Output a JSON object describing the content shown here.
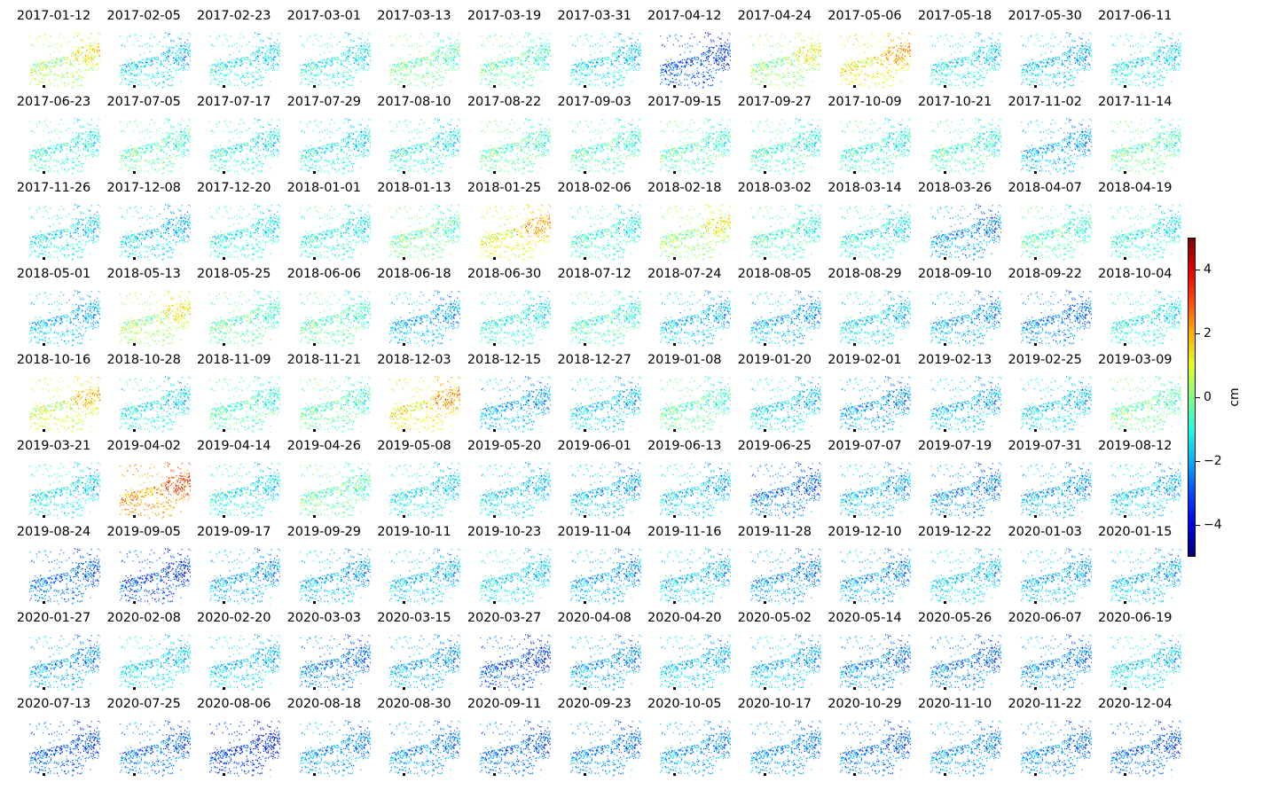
{
  "chart_data": {
    "type": "heatmap",
    "layout": "small-multiples",
    "colormap": "jet",
    "colorbar": {
      "range": [
        -5,
        5
      ],
      "ticks": [
        4,
        2,
        0,
        -2,
        -4
      ],
      "tick_labels": [
        "4",
        "2",
        "0",
        "−2",
        "−4"
      ],
      "unit": "cm"
    },
    "panels": [
      {
        "date": "2017-01-12",
        "mean": 0.4
      },
      {
        "date": "2017-02-05",
        "mean": -1.4
      },
      {
        "date": "2017-02-23",
        "mean": -1.1
      },
      {
        "date": "2017-03-01",
        "mean": -1.0
      },
      {
        "date": "2017-03-13",
        "mean": -0.2
      },
      {
        "date": "2017-03-19",
        "mean": -0.4
      },
      {
        "date": "2017-03-31",
        "mean": -1.3
      },
      {
        "date": "2017-04-12",
        "mean": -2.9
      },
      {
        "date": "2017-04-24",
        "mean": 0.1
      },
      {
        "date": "2017-05-06",
        "mean": 1.2
      },
      {
        "date": "2017-05-18",
        "mean": -1.2
      },
      {
        "date": "2017-05-30",
        "mean": -1.6
      },
      {
        "date": "2017-06-11",
        "mean": -1.2
      },
      {
        "date": "2017-06-23",
        "mean": -0.8
      },
      {
        "date": "2017-07-05",
        "mean": -0.4
      },
      {
        "date": "2017-07-17",
        "mean": -0.9
      },
      {
        "date": "2017-07-29",
        "mean": -1.1
      },
      {
        "date": "2017-08-10",
        "mean": -0.9
      },
      {
        "date": "2017-08-22",
        "mean": -0.4
      },
      {
        "date": "2017-09-03",
        "mean": -0.5
      },
      {
        "date": "2017-09-15",
        "mean": -0.5
      },
      {
        "date": "2017-09-27",
        "mean": -0.7
      },
      {
        "date": "2017-10-09",
        "mean": -0.8
      },
      {
        "date": "2017-10-21",
        "mean": -0.6
      },
      {
        "date": "2017-11-02",
        "mean": -1.8
      },
      {
        "date": "2017-11-14",
        "mean": -0.3
      },
      {
        "date": "2017-11-26",
        "mean": -1.2
      },
      {
        "date": "2017-12-08",
        "mean": -1.5
      },
      {
        "date": "2017-12-20",
        "mean": -1.0
      },
      {
        "date": "2018-01-01",
        "mean": -0.9
      },
      {
        "date": "2018-01-13",
        "mean": -0.2
      },
      {
        "date": "2018-01-25",
        "mean": 1.1
      },
      {
        "date": "2018-02-06",
        "mean": -0.8
      },
      {
        "date": "2018-02-18",
        "mean": 0.2
      },
      {
        "date": "2018-03-02",
        "mean": -0.6
      },
      {
        "date": "2018-03-14",
        "mean": -1.0
      },
      {
        "date": "2018-03-26",
        "mean": -2.1
      },
      {
        "date": "2018-04-07",
        "mean": -0.5
      },
      {
        "date": "2018-04-19",
        "mean": -0.9
      },
      {
        "date": "2018-05-01",
        "mean": -1.7
      },
      {
        "date": "2018-05-13",
        "mean": 0.3
      },
      {
        "date": "2018-05-25",
        "mean": -0.4
      },
      {
        "date": "2018-06-06",
        "mean": -0.4
      },
      {
        "date": "2018-06-18",
        "mean": -1.8
      },
      {
        "date": "2018-06-30",
        "mean": -0.9
      },
      {
        "date": "2018-07-12",
        "mean": -0.6
      },
      {
        "date": "2018-07-24",
        "mean": -1.6
      },
      {
        "date": "2018-08-05",
        "mean": -1.8
      },
      {
        "date": "2018-08-29",
        "mean": -1.4
      },
      {
        "date": "2018-09-10",
        "mean": -1.9
      },
      {
        "date": "2018-09-22",
        "mean": -2.3
      },
      {
        "date": "2018-10-04",
        "mean": -1.0
      },
      {
        "date": "2018-10-16",
        "mean": 0.8
      },
      {
        "date": "2018-10-28",
        "mean": -1.1
      },
      {
        "date": "2018-11-09",
        "mean": -0.6
      },
      {
        "date": "2018-11-21",
        "mean": -0.4
      },
      {
        "date": "2018-12-03",
        "mean": 1.3
      },
      {
        "date": "2018-12-15",
        "mean": -1.8
      },
      {
        "date": "2018-12-27",
        "mean": -1.5
      },
      {
        "date": "2019-01-08",
        "mean": -0.4
      },
      {
        "date": "2019-01-20",
        "mean": -1.4
      },
      {
        "date": "2019-02-01",
        "mean": -2.0
      },
      {
        "date": "2019-02-13",
        "mean": -1.7
      },
      {
        "date": "2019-02-25",
        "mean": -1.4
      },
      {
        "date": "2019-03-09",
        "mean": -0.2
      },
      {
        "date": "2019-03-21",
        "mean": -1.2
      },
      {
        "date": "2019-04-02",
        "mean": 2.2
      },
      {
        "date": "2019-04-14",
        "mean": -1.1
      },
      {
        "date": "2019-04-26",
        "mean": -0.3
      },
      {
        "date": "2019-05-08",
        "mean": -1.2
      },
      {
        "date": "2019-05-20",
        "mean": -1.4
      },
      {
        "date": "2019-06-01",
        "mean": -1.7
      },
      {
        "date": "2019-06-13",
        "mean": -1.5
      },
      {
        "date": "2019-06-25",
        "mean": -2.5
      },
      {
        "date": "2019-07-07",
        "mean": -1.7
      },
      {
        "date": "2019-07-19",
        "mean": -2.2
      },
      {
        "date": "2019-07-31",
        "mean": -1.9
      },
      {
        "date": "2019-08-12",
        "mean": -1.6
      },
      {
        "date": "2019-08-24",
        "mean": -2.5
      },
      {
        "date": "2019-09-05",
        "mean": -3.0
      },
      {
        "date": "2019-09-17",
        "mean": -1.9
      },
      {
        "date": "2019-09-29",
        "mean": -1.8
      },
      {
        "date": "2019-10-11",
        "mean": -1.6
      },
      {
        "date": "2019-10-23",
        "mean": -1.3
      },
      {
        "date": "2019-11-04",
        "mean": -1.9
      },
      {
        "date": "2019-11-16",
        "mean": -1.6
      },
      {
        "date": "2019-11-28",
        "mean": -2.1
      },
      {
        "date": "2019-12-10",
        "mean": -2.0
      },
      {
        "date": "2019-12-22",
        "mean": -1.5
      },
      {
        "date": "2020-01-03",
        "mean": -1.8
      },
      {
        "date": "2020-01-15",
        "mean": -1.7
      },
      {
        "date": "2020-01-27",
        "mean": -2.0
      },
      {
        "date": "2020-02-08",
        "mean": -1.3
      },
      {
        "date": "2020-02-20",
        "mean": -1.5
      },
      {
        "date": "2020-03-03",
        "mean": -2.4
      },
      {
        "date": "2020-03-15",
        "mean": -1.9
      },
      {
        "date": "2020-03-27",
        "mean": -2.9
      },
      {
        "date": "2020-04-08",
        "mean": -2.0
      },
      {
        "date": "2020-04-20",
        "mean": -1.6
      },
      {
        "date": "2020-05-02",
        "mean": -1.7
      },
      {
        "date": "2020-05-14",
        "mean": -2.3
      },
      {
        "date": "2020-05-26",
        "mean": -2.4
      },
      {
        "date": "2020-06-07",
        "mean": -2.2
      },
      {
        "date": "2020-06-19",
        "mean": -1.4
      },
      {
        "date": "2020-07-13",
        "mean": -2.8
      },
      {
        "date": "2020-07-25",
        "mean": -2.5
      },
      {
        "date": "2020-08-06",
        "mean": -3.2
      },
      {
        "date": "2020-08-18",
        "mean": -2.1
      },
      {
        "date": "2020-08-30",
        "mean": -2.2
      },
      {
        "date": "2020-09-11",
        "mean": -2.6
      },
      {
        "date": "2020-09-23",
        "mean": -2.3
      },
      {
        "date": "2020-10-05",
        "mean": -2.0
      },
      {
        "date": "2020-10-17",
        "mean": -2.2
      },
      {
        "date": "2020-10-29",
        "mean": -2.5
      },
      {
        "date": "2020-11-10",
        "mean": -2.1
      },
      {
        "date": "2020-11-22",
        "mean": -2.3
      },
      {
        "date": "2020-12-04",
        "mean": -2.6
      }
    ]
  }
}
